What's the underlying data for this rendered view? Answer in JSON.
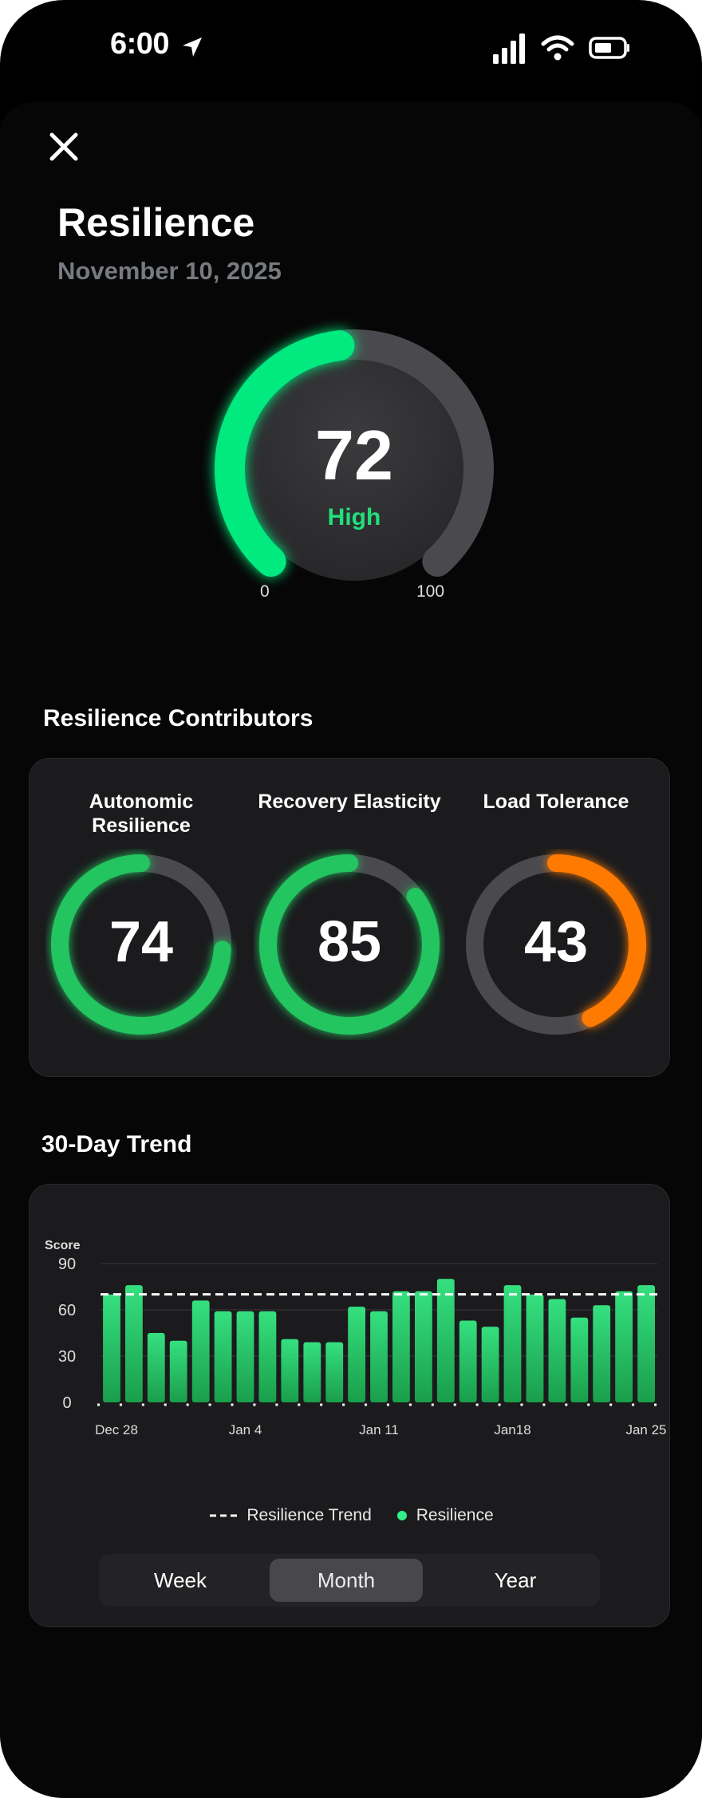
{
  "status_bar": {
    "time": "6:00"
  },
  "header": {
    "title": "Resilience",
    "date": "November 10, 2025"
  },
  "gauge": {
    "score": "72",
    "label": "High",
    "min": "0",
    "max": "100",
    "value": 72,
    "color": "#00ea80"
  },
  "contributors": {
    "title": "Resilience Contributors",
    "items": [
      {
        "name": "Autonomic Resilience",
        "value": "74",
        "fraction": 0.74,
        "color": "#22c55e"
      },
      {
        "name": "Recovery Elasticity",
        "value": "85",
        "fraction": 0.85,
        "color": "#22c55e"
      },
      {
        "name": "Load Tolerance",
        "value": "43",
        "fraction": 0.43,
        "color": "#ff7a00"
      }
    ]
  },
  "trend": {
    "title": "30-Day Trend",
    "legend": {
      "trend": "Resilience Trend",
      "series": "Resilience"
    },
    "tabs": [
      {
        "label": "Week",
        "active": false
      },
      {
        "label": "Month",
        "active": true
      },
      {
        "label": "Year",
        "active": false
      }
    ]
  },
  "chart_data": {
    "type": "bar",
    "ylabel": "Score",
    "ylim": [
      0,
      90
    ],
    "yticks": [
      "0",
      "30",
      "60",
      "90"
    ],
    "xtick_labels": [
      "Dec 28",
      "Jan 4",
      "Jan 11",
      "Jan18",
      "Jan 25"
    ],
    "xtick_positions": [
      0,
      6,
      12,
      18,
      24
    ],
    "series": [
      {
        "name": "Resilience",
        "values": [
          70,
          76,
          45,
          40,
          66,
          59,
          59,
          59,
          41,
          39,
          39,
          62,
          59,
          72,
          72,
          80,
          53,
          49,
          76,
          70,
          67,
          55,
          63,
          72,
          76
        ]
      }
    ],
    "trend_line": {
      "name": "Resilience Trend",
      "value": 70
    },
    "colors": {
      "bar": "#22c55e",
      "trend": "#ffffff"
    }
  }
}
